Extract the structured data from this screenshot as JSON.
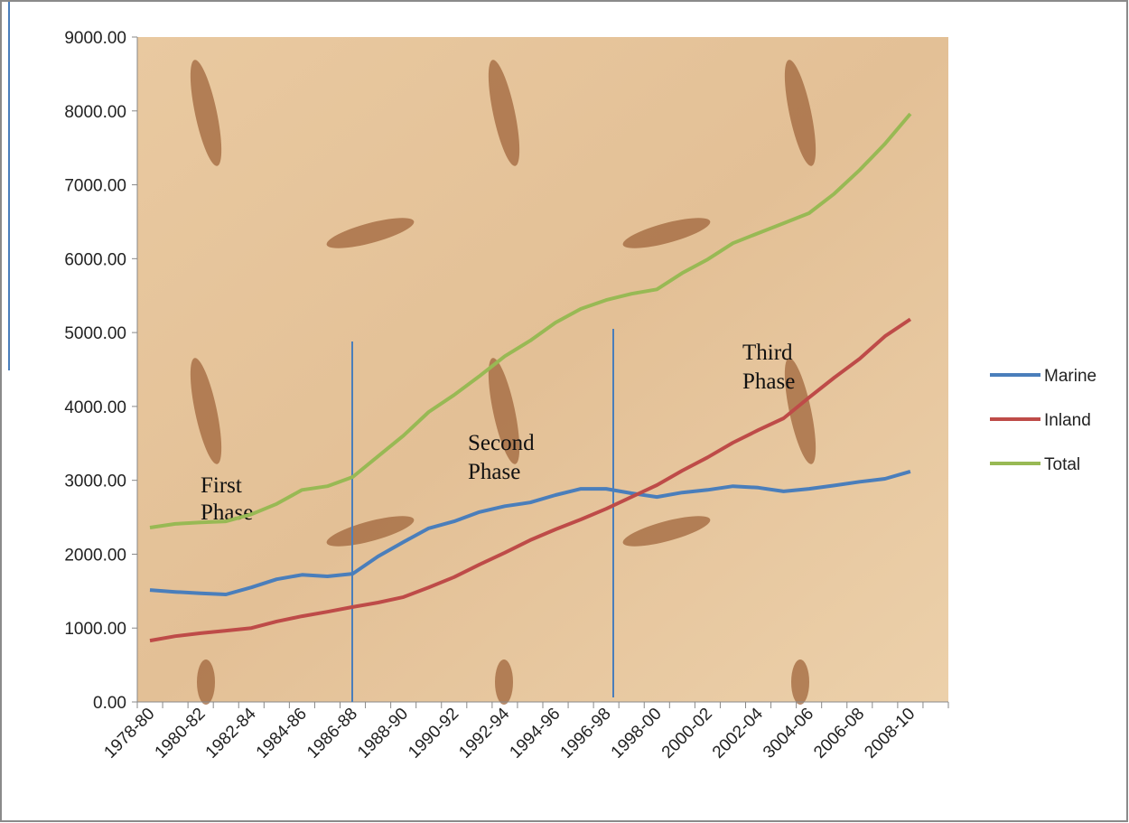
{
  "chart_data": {
    "type": "line",
    "categories": [
      "1978-80",
      null,
      "1980-82",
      null,
      "1982-84",
      null,
      "1984-86",
      null,
      "1986-88",
      null,
      "1988-90",
      null,
      "1990-92",
      null,
      "1992-94",
      null,
      "1994-96",
      null,
      "1996-98",
      null,
      "1998-00",
      null,
      "2000-02",
      null,
      "2002-04",
      null,
      "3004-06",
      null,
      "2006-08",
      null,
      "2008-10",
      null
    ],
    "series": [
      {
        "name": "Marine",
        "color": "#4a7ebb",
        "values": [
          1515,
          1490,
          1470,
          1455,
          1550,
          1660,
          1720,
          1700,
          1735,
          1970,
          2165,
          2350,
          2445,
          2570,
          2650,
          2700,
          2800,
          2885,
          2885,
          2825,
          2775,
          2835,
          2870,
          2920,
          2900,
          2850,
          2885,
          2930,
          2980,
          3020,
          3120,
          null
        ]
      },
      {
        "name": "Inland",
        "color": "#be4b48",
        "values": [
          830,
          890,
          930,
          965,
          1000,
          1090,
          1160,
          1220,
          1285,
          1345,
          1420,
          1550,
          1690,
          1860,
          2020,
          2190,
          2335,
          2470,
          2615,
          2775,
          2935,
          3130,
          3310,
          3510,
          3680,
          3840,
          4120,
          4390,
          4645,
          4950,
          5180,
          null
        ]
      },
      {
        "name": "Total",
        "color": "#98b954",
        "values": [
          2360,
          2410,
          2430,
          2445,
          2540,
          2680,
          2870,
          2920,
          3045,
          3325,
          3605,
          3925,
          4155,
          4410,
          4680,
          4890,
          5135,
          5320,
          5440,
          5525,
          5585,
          5805,
          5990,
          6210,
          6345,
          6480,
          6615,
          6880,
          7200,
          7555,
          7960,
          null
        ]
      }
    ],
    "ylim": [
      0,
      9000
    ],
    "yticks": [
      {
        "value": 0,
        "label": "0.00"
      },
      {
        "value": 1000,
        "label": "1000.00"
      },
      {
        "value": 2000,
        "label": "2000.00"
      },
      {
        "value": 3000,
        "label": "3000.00"
      },
      {
        "value": 4000,
        "label": "4000.00"
      },
      {
        "value": 5000,
        "label": "5000.00"
      },
      {
        "value": 6000,
        "label": "6000.00"
      },
      {
        "value": 7000,
        "label": "7000.00"
      },
      {
        "value": 8000,
        "label": "8000.00"
      },
      {
        "value": 9000,
        "label": "9000.00"
      }
    ],
    "annotations": [
      [
        "First",
        "Phase"
      ],
      [
        "Second",
        "Phase"
      ],
      [
        "Third",
        "Phase"
      ]
    ],
    "legend": "right"
  }
}
